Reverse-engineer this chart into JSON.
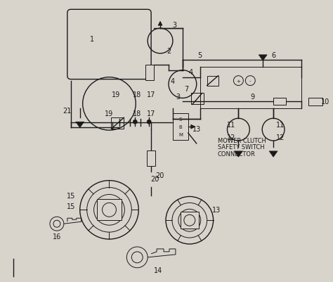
{
  "bg_color": "#d8d4cc",
  "line_color": "#1a1a1a",
  "fig_width": 4.74,
  "fig_height": 4.02,
  "dpi": 100,
  "note_lines": [
    "MOWER CLUTCH",
    "SAFETY SWITCH",
    "CONNECTOR"
  ]
}
